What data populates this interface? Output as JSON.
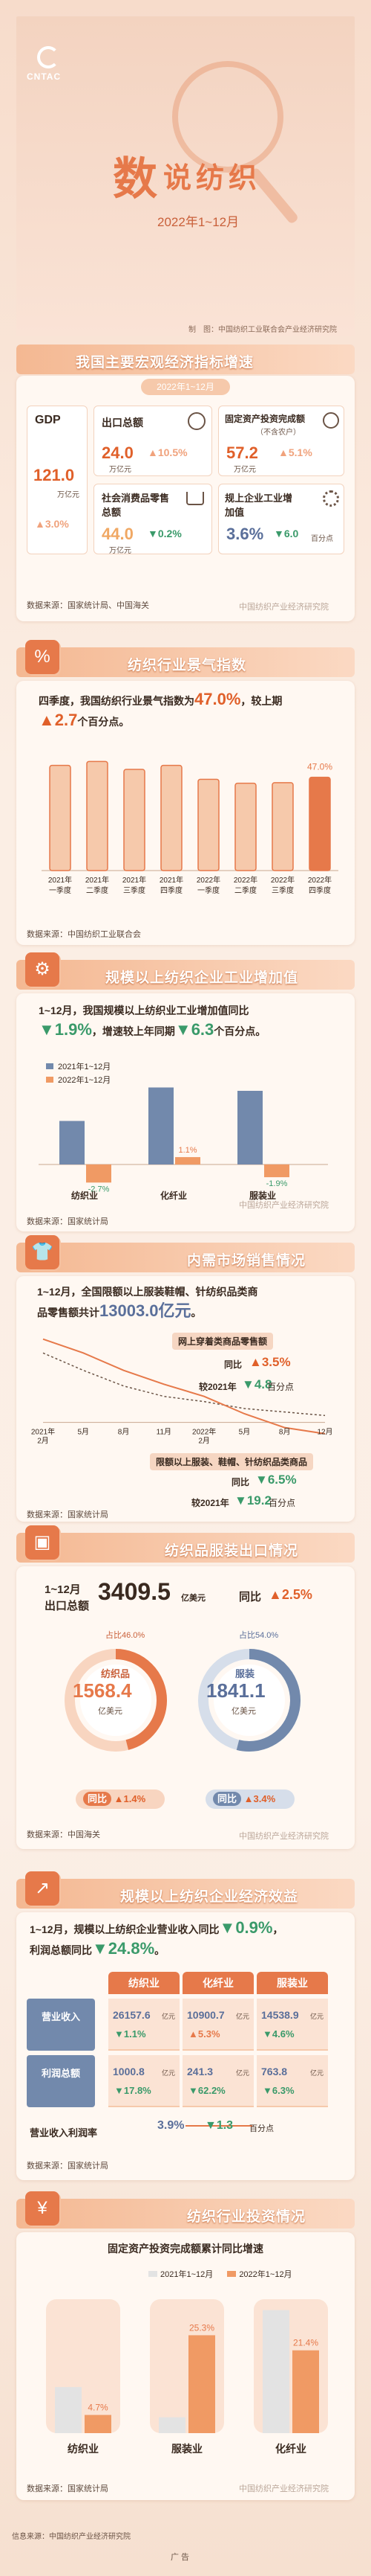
{
  "header": {
    "logo": "CNTAC",
    "title_big": "数",
    "title_rest": "说纺织",
    "period": "2022年1~12月",
    "credit": "制　图：中国纺织工业联合会产业经济研究院"
  },
  "s1": {
    "title": "我国主要宏观经济指标增速",
    "badge": "2022年1~12月",
    "gdp": {
      "label": "GDP",
      "value": "121.0",
      "unit": "万亿元",
      "change": "▲3.0%"
    },
    "export": {
      "label": "出口总额",
      "value": "24.0",
      "unit": "万亿元",
      "change": "▲10.5%"
    },
    "fai": {
      "label": "固定资产投资完成额",
      "sub": "（不含农户）",
      "value": "57.2",
      "unit": "万亿元",
      "change": "▲5.1%"
    },
    "retail": {
      "label": "社会消费品零售总额",
      "value": "44.0",
      "unit": "万亿元",
      "change": "▼0.2%"
    },
    "industry": {
      "label": "规上企业工业增加值",
      "value": "3.6%",
      "change": "▼6.0",
      "change_unit": "百分点"
    },
    "source": "数据来源：国家统计局、中国海关",
    "watermark": "中国纺织产业经济研究院"
  },
  "s2": {
    "title": "纺织行业景气指数",
    "text1": "四季度，我国纺织行业景气指数为",
    "value": "47.0%",
    "text2": "，较上期",
    "change": "▲2.7",
    "text3": "个百分点。",
    "source": "数据来源：中国纺织工业联合会"
  },
  "chart_data": [
    {
      "type": "bar",
      "categories": [
        "2021年一季度",
        "2021年二季度",
        "2021年三季度",
        "2021年四季度",
        "2022年一季度",
        "2022年二季度",
        "2022年三季度",
        "2022年四季度"
      ],
      "labels_line1": [
        "2021年",
        "2021年",
        "2021年",
        "2021年",
        "2022年",
        "2022年",
        "2022年",
        "2022年"
      ],
      "labels_line2": [
        "一季度",
        "二季度",
        "三季度",
        "四季度",
        "一季度",
        "二季度",
        "三季度",
        "四季度"
      ],
      "values": [
        53,
        55,
        51,
        53,
        46,
        44,
        44.3,
        47.0
      ],
      "data_labels": [
        "",
        "",
        "",
        "",
        "",
        "",
        "",
        "47.0%"
      ],
      "ylim": [
        0,
        60
      ]
    },
    {
      "type": "bar",
      "categories": [
        "纺织业",
        "化纤业",
        "服装业"
      ],
      "series": [
        {
          "name": "2021年1~12月",
          "values": [
            6.5,
            11.5,
            11.0
          ]
        },
        {
          "name": "2022年1~12月",
          "values": [
            -2.7,
            1.1,
            -1.9
          ]
        }
      ],
      "data_labels": {
        "2022年1~12月": [
          "-2.7%",
          "1.1%",
          "-1.9%"
        ]
      },
      "ylim": [
        -4,
        13
      ]
    },
    {
      "type": "line",
      "x": [
        "2021年2月",
        "5月",
        "8月",
        "11月",
        "2022年2月",
        "5月",
        "8月",
        "12月"
      ],
      "series": [
        {
          "name": "网上穿着类商品零售额同比",
          "values": [
            40,
            30,
            21,
            15,
            12,
            8,
            6,
            4
          ]
        },
        {
          "name": "限额以上服装、鞋帽、针纺织品类商品零售额同比",
          "values": [
            48,
            40,
            30,
            22,
            15,
            5,
            -3,
            -6.5
          ]
        }
      ],
      "ylim": [
        -10,
        50
      ]
    },
    {
      "type": "pie",
      "title": "纺织品",
      "categories": [
        "纺织品",
        "其他"
      ],
      "values": [
        46.0,
        54.0
      ],
      "value_text": "1568.4",
      "unit": "亿美元",
      "share_label": "占比46.0%",
      "change": "▲1.4%"
    },
    {
      "type": "pie",
      "title": "服装",
      "categories": [
        "服装",
        "其他"
      ],
      "values": [
        54.0,
        46.0
      ],
      "value_text": "1841.1",
      "unit": "亿美元",
      "share_label": "占比54.0%",
      "change": "▲3.4%"
    },
    {
      "type": "bar",
      "title": "固定资产投资完成额累计同比增速",
      "categories": [
        "纺织业",
        "服装业",
        "化纤业"
      ],
      "series": [
        {
          "name": "2021年1~12月",
          "values": [
            11.9,
            4.1,
            31.8
          ]
        },
        {
          "name": "2022年1~12月",
          "values": [
            4.7,
            25.3,
            21.4
          ]
        }
      ],
      "data_labels": {
        "2022年1~12月": [
          "4.7%",
          "25.3%",
          "21.4%"
        ]
      },
      "ylim": [
        0,
        35
      ]
    }
  ],
  "s3": {
    "title": "规模以上纺织企业工业增加值",
    "text1": "1~12月，我国规模以上纺织业工业增加值同比",
    "change": "▼1.9%",
    "text2": "，增速较上年同期",
    "change2": "▼6.3",
    "text3": "个百分点。",
    "legend1": "2021年1~12月",
    "legend2": "2022年1~12月",
    "labels": [
      "-2.7%",
      "1.1%",
      "-1.9%"
    ],
    "cats": [
      "纺织业",
      "化纤业",
      "服装业"
    ],
    "source": "数据来源：国家统计局"
  },
  "s4": {
    "title": "内需市场销售情况",
    "text1": "1~12月，全国限额以上服装鞋帽、针纺织品类商",
    "text2": "品零售额共计",
    "value": "13003.0亿元",
    "text3": "。",
    "online_title": "网上穿着类商品零售额",
    "online_yoy": "同比",
    "online_change": "▲3.5%",
    "online_cmp": "较2021年",
    "online_cmp_change": "▼4.8",
    "online_cmp_unit": "百分点",
    "limit_title": "限额以上服装、鞋帽、针纺织品类商品",
    "limit_yoy": "同比",
    "limit_change": "▼6.5%",
    "limit_cmp": "较2021年",
    "limit_cmp_change": "▼19.2",
    "limit_cmp_unit": "百分点",
    "x_labels": [
      "2021年",
      "5月",
      "8月",
      "11月",
      "2022年",
      "5月",
      "8月",
      "12月"
    ],
    "x_labels2": [
      "2月",
      "",
      "",
      "",
      "2月",
      "",
      "",
      ""
    ],
    "source": "数据来源：国家统计局"
  },
  "s5": {
    "title": "纺织品服装出口情况",
    "period": "1~12月",
    "label": "出口总额",
    "value": "3409.5",
    "unit": "亿美元",
    "yoy": "同比",
    "change": "▲2.5%",
    "tex_name": "纺织品",
    "tex_share": "占比46.0%",
    "tex_value": "1568.4",
    "tex_unit": "亿美元",
    "tex_yoy": "同比",
    "tex_change": "▲1.4%",
    "app_name": "服装",
    "app_share": "占比54.0%",
    "app_value": "1841.1",
    "app_unit": "亿美元",
    "app_yoy": "同比",
    "app_change": "▲3.4%",
    "source": "数据来源：中国海关"
  },
  "s6": {
    "title": "规模以上纺织企业经济效益",
    "text1": "1~12月，规模以上纺织企业营业收入同比",
    "change1": "▼0.9%",
    "text2": "，",
    "text3": "利润总额同比",
    "change2": "▼24.8%",
    "text4": "。",
    "cols": [
      "纺织业",
      "化纤业",
      "服装业"
    ],
    "row1_label": "营业收入",
    "row1_unit": "亿元",
    "row1_values": [
      "26157.6",
      "10900.7",
      "14538.9"
    ],
    "row1_changes": [
      "▼1.1%",
      "▲5.3%",
      "▼4.6%"
    ],
    "row2_label": "利润总额",
    "row2_unit": "亿元",
    "row2_values": [
      "1000.8",
      "241.3",
      "763.8"
    ],
    "row2_changes": [
      "▼17.8%",
      "▼62.2%",
      "▼6.3%"
    ],
    "margin_label": "营业收入利润率",
    "margin_value": "3.9%",
    "margin_change": "▼1.3",
    "margin_unit": "百分点",
    "source": "数据来源：国家统计局"
  },
  "s7": {
    "title": "纺织行业投资情况",
    "subtitle": "固定资产投资完成额累计同比增速",
    "legend1": "2021年1~12月",
    "legend2": "2022年1~12月",
    "labels": [
      "4.7%",
      "25.3%",
      "21.4%"
    ],
    "cats": [
      "纺织业",
      "服装业",
      "化纤业"
    ],
    "source": "数据来源：国家统计局"
  },
  "footer": {
    "text": "信息来源：中国纺织产业经济研究院",
    "more": "广 告"
  },
  "colors": {
    "accent": "#e6794a",
    "light": "#f6c9ab",
    "blue": "#7289ac",
    "green": "#3a9a6a"
  }
}
